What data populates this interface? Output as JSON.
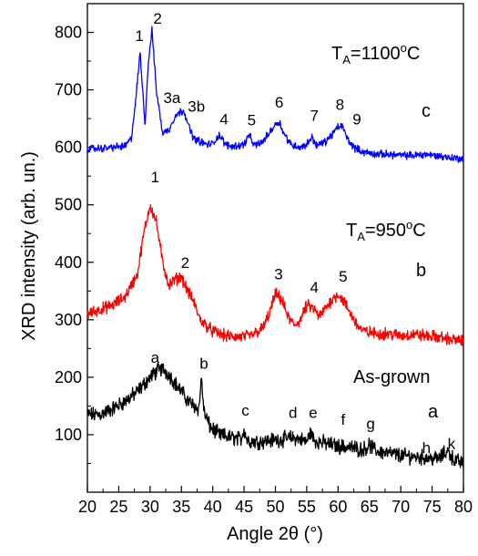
{
  "chart_data": {
    "type": "line",
    "xlabel": "Angle 2θ (°)",
    "ylabel": "XRD intensity (arb. un.)",
    "xlim": [
      20,
      80
    ],
    "ylim": [
      0,
      850
    ],
    "xticks": [
      20,
      25,
      30,
      35,
      40,
      45,
      50,
      55,
      60,
      65,
      70,
      75,
      80
    ],
    "yticks": [
      100,
      200,
      300,
      400,
      500,
      600,
      700,
      800
    ],
    "series": [
      {
        "name": "As-grown",
        "color": "#000000",
        "label": "As-grown",
        "letter": "a",
        "x": [
          20,
          22,
          24,
          26,
          28,
          30,
          31,
          32,
          33,
          34,
          35,
          36,
          37,
          37.8,
          38.2,
          38.6,
          39.5,
          41,
          43,
          44.5,
          45,
          45.5,
          47,
          49,
          51,
          53,
          55,
          55.6,
          56.2,
          58,
          60,
          62,
          64,
          65,
          66,
          68,
          70,
          72,
          74,
          76,
          77.5,
          78.5,
          80
        ],
        "y": [
          135,
          135,
          145,
          158,
          175,
          200,
          210,
          215,
          205,
          190,
          175,
          160,
          150,
          145,
          200,
          140,
          115,
          100,
          95,
          92,
          110,
          90,
          88,
          90,
          92,
          95,
          88,
          105,
          90,
          85,
          80,
          78,
          74,
          82,
          72,
          68,
          64,
          62,
          60,
          58,
          72,
          56,
          50
        ]
      },
      {
        "name": "TA=950°C",
        "color": "#ff0000",
        "label_main": "T",
        "label_sub": "A",
        "label_rest": "=950",
        "label_sup": "o",
        "label_end": "C",
        "letter": "b",
        "x": [
          20,
          22,
          24,
          26,
          28,
          29,
          30,
          31,
          32,
          33,
          34,
          35,
          36,
          37,
          38,
          40,
          42,
          44,
          46,
          48,
          49,
          50,
          51,
          52,
          53,
          54,
          55,
          56,
          57,
          58,
          59,
          60,
          61,
          62,
          63,
          64,
          66,
          68,
          70,
          72,
          74,
          76,
          78,
          80
        ],
        "y": [
          310,
          318,
          325,
          340,
          380,
          450,
          500,
          470,
          400,
          360,
          370,
          375,
          350,
          330,
          300,
          280,
          272,
          270,
          272,
          285,
          310,
          345,
          335,
          305,
          290,
          300,
          325,
          320,
          305,
          320,
          335,
          345,
          330,
          310,
          292,
          280,
          276,
          276,
          272,
          275,
          272,
          270,
          266,
          262
        ]
      },
      {
        "name": "TA=1100°C",
        "color": "#0000ff",
        "label_main": "T",
        "label_sub": "A",
        "label_rest": "=1100",
        "label_sup": "o",
        "label_end": "C",
        "letter": "c",
        "x": [
          20,
          22,
          24,
          26,
          27,
          27.7,
          28.4,
          29.2,
          29.7,
          30.3,
          31,
          32,
          33,
          34,
          34.7,
          35.4,
          36.2,
          37,
          38,
          39,
          40,
          41,
          42,
          43,
          44,
          45,
          45.8,
          46.6,
          48,
          49,
          50,
          50.6,
          51.3,
          52.5,
          54,
          55,
          55.8,
          56.6,
          58,
          59,
          60,
          60.6,
          61.5,
          62.5,
          64,
          66,
          68,
          70,
          72,
          74,
          76,
          78,
          80
        ],
        "y": [
          598,
          598,
          600,
          602,
          615,
          680,
          765,
          640,
          745,
          805,
          700,
          625,
          630,
          655,
          660,
          665,
          635,
          615,
          610,
          605,
          606,
          622,
          605,
          602,
          603,
          605,
          622,
          603,
          610,
          625,
          640,
          645,
          625,
          605,
          600,
          605,
          618,
          603,
          610,
          622,
          635,
          638,
          615,
          600,
          592,
          588,
          588,
          586,
          586,
          588,
          585,
          582,
          580
        ]
      }
    ],
    "peak_labels": [
      {
        "text": "1",
        "x": 28.3,
        "y": 785
      },
      {
        "text": "2",
        "x": 31.2,
        "y": 815
      },
      {
        "text": "3a",
        "x": 33.5,
        "y": 677
      },
      {
        "text": "3b",
        "x": 37.4,
        "y": 662
      },
      {
        "text": "4",
        "x": 41.8,
        "y": 640
      },
      {
        "text": "5",
        "x": 46.2,
        "y": 638
      },
      {
        "text": "6",
        "x": 50.6,
        "y": 669
      },
      {
        "text": "7",
        "x": 56.2,
        "y": 646
      },
      {
        "text": "8",
        "x": 60.3,
        "y": 665
      },
      {
        "text": "9",
        "x": 63.0,
        "y": 640
      },
      {
        "text": "1",
        "x": 30.8,
        "y": 539
      },
      {
        "text": "2",
        "x": 35.6,
        "y": 390
      },
      {
        "text": "3",
        "x": 50.5,
        "y": 370
      },
      {
        "text": "4",
        "x": 56.2,
        "y": 347
      },
      {
        "text": "5",
        "x": 60.8,
        "y": 366
      },
      {
        "text": "a",
        "x": 30.8,
        "y": 225
      },
      {
        "text": "b",
        "x": 38.6,
        "y": 215
      },
      {
        "text": "c",
        "x": 45.2,
        "y": 133
      },
      {
        "text": "d",
        "x": 52.8,
        "y": 129
      },
      {
        "text": "e",
        "x": 56.0,
        "y": 129
      },
      {
        "text": "f",
        "x": 60.8,
        "y": 117
      },
      {
        "text": "g",
        "x": 65.2,
        "y": 110
      },
      {
        "text": "h",
        "x": 74.1,
        "y": 68
      },
      {
        "text": "k",
        "x": 78.1,
        "y": 75
      }
    ]
  }
}
